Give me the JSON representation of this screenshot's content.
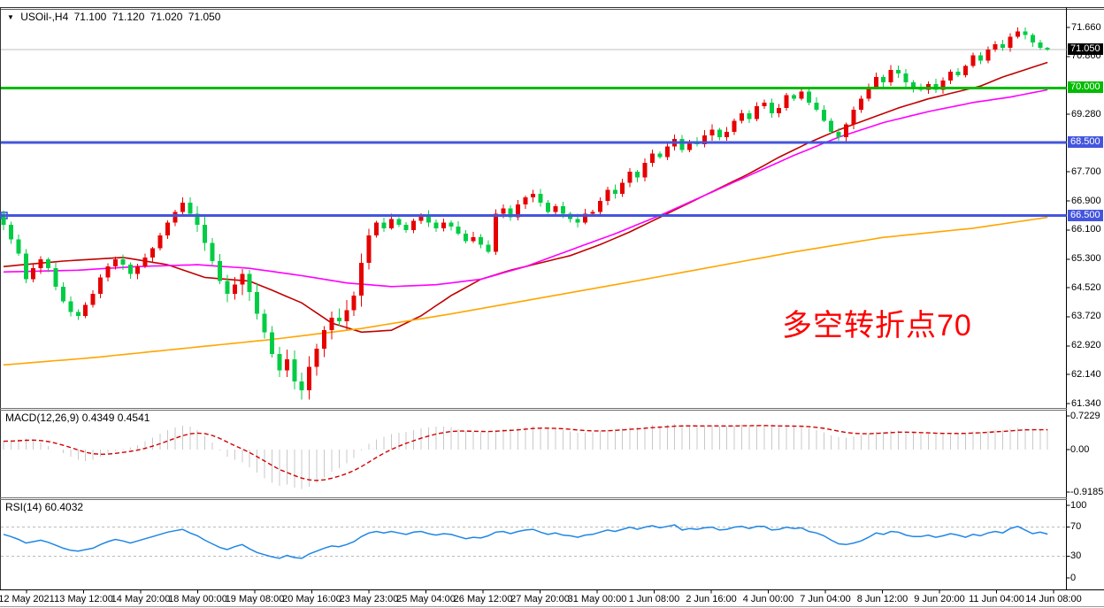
{
  "chart": {
    "symbol_title": "USOil-,H4",
    "ohlc": {
      "open": "71.100",
      "high": "71.120",
      "low": "71.020",
      "close": "71.050"
    },
    "annotation": {
      "text": "多空转折点70",
      "color": "#FF0000"
    }
  },
  "chart_data": {
    "type": "candlestick",
    "title": "USOil- H4",
    "bull_color": "#E60000",
    "bear_color": "#00CC44",
    "current_price": 71.05,
    "current_price_line_color": "#BFBFBF",
    "price_axis_range": [
      61.34,
      71.66
    ],
    "price_axis_ticks": [
      "71.660",
      "70.860",
      "69.280",
      "67.700",
      "66.900",
      "66.100",
      "65.300",
      "64.520",
      "63.720",
      "62.920",
      "62.140",
      "61.340"
    ],
    "price_line_tags": [
      {
        "value": "71.050",
        "price": 71.05,
        "bg": "#000000"
      },
      {
        "value": "70.000",
        "price": 70.0,
        "bg": "#00BB00"
      },
      {
        "value": "68.500",
        "price": 68.5,
        "bg": "#4455DD"
      },
      {
        "value": "66.500",
        "price": 66.5,
        "bg": "#4455DD"
      }
    ],
    "hlines": [
      {
        "price": 70.0,
        "color": "#00BB00",
        "width": 3
      },
      {
        "price": 68.5,
        "color": "#4455DD",
        "width": 3
      },
      {
        "price": 66.5,
        "color": "#4455DD",
        "width": 3,
        "handle": true
      }
    ],
    "x_labels": [
      "12 May 2021",
      "13 May 12:00",
      "14 May 20:00",
      "18 May 00:00",
      "19 May 08:00",
      "20 May 16:00",
      "23 May 23:00",
      "25 May 04:00",
      "26 May 12:00",
      "27 May 20:00",
      "31 May 00:00",
      "1 Jun 08:00",
      "2 Jun 16:00",
      "4 Jun 00:00",
      "7 Jun 04:00",
      "8 Jun 12:00",
      "9 Jun 20:00",
      "11 Jun 04:00",
      "14 Jun 08:00"
    ],
    "open_first": 66.55,
    "closes": [
      66.25,
      65.85,
      65.45,
      64.75,
      65.05,
      65.3,
      65.05,
      64.55,
      64.15,
      63.85,
      63.75,
      64.05,
      64.35,
      64.8,
      65.1,
      65.3,
      65.15,
      64.9,
      65.1,
      65.35,
      65.6,
      65.95,
      66.3,
      66.6,
      66.85,
      66.55,
      66.25,
      65.75,
      65.25,
      64.7,
      64.35,
      64.6,
      64.9,
      64.4,
      63.8,
      63.3,
      62.7,
      62.25,
      62.55,
      61.95,
      61.7,
      62.35,
      62.85,
      63.35,
      63.7,
      63.6,
      63.9,
      64.3,
      65.2,
      65.95,
      66.3,
      66.15,
      66.4,
      66.25,
      66.1,
      66.35,
      66.5,
      66.3,
      66.15,
      66.3,
      66.2,
      66.0,
      65.8,
      65.9,
      65.7,
      65.5,
      66.55,
      66.7,
      66.45,
      66.8,
      67.0,
      67.1,
      66.85,
      66.6,
      66.75,
      66.55,
      66.4,
      66.3,
      66.55,
      66.6,
      66.9,
      67.2,
      67.1,
      67.4,
      67.7,
      67.55,
      67.95,
      68.2,
      68.1,
      68.4,
      68.6,
      68.3,
      68.5,
      68.45,
      68.7,
      68.85,
      68.65,
      68.8,
      69.1,
      69.3,
      69.15,
      69.5,
      69.6,
      69.3,
      69.45,
      69.8,
      69.7,
      69.9,
      69.6,
      69.4,
      69.1,
      68.8,
      68.65,
      69.0,
      69.4,
      69.7,
      70.0,
      70.3,
      70.15,
      70.5,
      70.4,
      70.15,
      70.0,
      69.95,
      70.1,
      69.95,
      70.2,
      70.45,
      70.35,
      70.6,
      70.9,
      70.75,
      71.05,
      71.2,
      71.1,
      71.4,
      71.55,
      71.45,
      71.25,
      71.1,
      71.05
    ],
    "overrides": {
      "24": {
        "h": 67.0
      },
      "41": {
        "l": 61.45
      },
      "112": {
        "l": 68.55
      },
      "136": {
        "h": 71.66
      },
      "140": {
        "o": 71.1,
        "h": 71.12,
        "l": 71.02,
        "c": 71.05
      }
    },
    "ma_lines": [
      {
        "name": "ma-fast-red",
        "color": "#C00000",
        "anchors": [
          [
            0,
            65.1
          ],
          [
            8,
            65.25
          ],
          [
            16,
            65.35
          ],
          [
            22,
            65.15
          ],
          [
            27,
            64.8
          ],
          [
            33,
            64.7
          ],
          [
            36,
            64.45
          ],
          [
            40,
            64.1
          ],
          [
            44,
            63.55
          ],
          [
            48,
            63.3
          ],
          [
            52,
            63.35
          ],
          [
            56,
            63.75
          ],
          [
            60,
            64.3
          ],
          [
            64,
            64.75
          ],
          [
            68,
            65.0
          ],
          [
            72,
            65.2
          ],
          [
            76,
            65.4
          ],
          [
            80,
            65.7
          ],
          [
            84,
            66.05
          ],
          [
            88,
            66.45
          ],
          [
            92,
            66.85
          ],
          [
            96,
            67.25
          ],
          [
            100,
            67.65
          ],
          [
            104,
            68.1
          ],
          [
            108,
            68.5
          ],
          [
            112,
            68.85
          ],
          [
            116,
            69.15
          ],
          [
            120,
            69.45
          ],
          [
            124,
            69.7
          ],
          [
            128,
            69.9
          ],
          [
            131,
            70.05
          ],
          [
            134,
            70.3
          ],
          [
            137,
            70.5
          ],
          [
            140,
            70.7
          ]
        ]
      },
      {
        "name": "ma-mid-magenta",
        "color": "#FF00FF",
        "anchors": [
          [
            0,
            64.95
          ],
          [
            10,
            65.0
          ],
          [
            18,
            65.1
          ],
          [
            26,
            65.15
          ],
          [
            33,
            65.05
          ],
          [
            40,
            64.85
          ],
          [
            46,
            64.65
          ],
          [
            52,
            64.55
          ],
          [
            58,
            64.6
          ],
          [
            64,
            64.75
          ],
          [
            70,
            65.1
          ],
          [
            76,
            65.55
          ],
          [
            82,
            66.0
          ],
          [
            88,
            66.5
          ],
          [
            94,
            67.05
          ],
          [
            100,
            67.6
          ],
          [
            106,
            68.15
          ],
          [
            112,
            68.65
          ],
          [
            118,
            69.05
          ],
          [
            124,
            69.35
          ],
          [
            130,
            69.6
          ],
          [
            135,
            69.75
          ],
          [
            140,
            69.95
          ]
        ]
      },
      {
        "name": "ma-slow-orange",
        "color": "#FFA500",
        "anchors": [
          [
            0,
            62.4
          ],
          [
            12,
            62.6
          ],
          [
            24,
            62.85
          ],
          [
            36,
            63.1
          ],
          [
            48,
            63.4
          ],
          [
            60,
            63.8
          ],
          [
            71,
            64.2
          ],
          [
            82,
            64.6
          ],
          [
            94,
            65.05
          ],
          [
            106,
            65.5
          ],
          [
            118,
            65.9
          ],
          [
            130,
            66.15
          ],
          [
            140,
            66.45
          ]
        ]
      }
    ],
    "macd": {
      "label": "MACD(12,26,9) 0.4349 0.4541",
      "scale": [
        "0.7229",
        "0.00",
        "-0.9185"
      ],
      "scale_values": [
        0.7229,
        0.0,
        -0.9185
      ],
      "hist_color": "#C8C8C8",
      "signal_color": "#D00000",
      "signal_period": 9,
      "values": [
        0.18,
        0.2,
        0.22,
        0.24,
        0.22,
        0.15,
        0.08,
        0.0,
        -0.08,
        -0.15,
        -0.22,
        -0.25,
        -0.22,
        -0.15,
        -0.08,
        -0.02,
        0.02,
        0.05,
        0.1,
        0.18,
        0.26,
        0.34,
        0.42,
        0.48,
        0.52,
        0.5,
        0.42,
        0.3,
        0.15,
        -0.02,
        -0.15,
        -0.22,
        -0.28,
        -0.38,
        -0.5,
        -0.62,
        -0.72,
        -0.78,
        -0.75,
        -0.82,
        -0.85,
        -0.8,
        -0.72,
        -0.6,
        -0.48,
        -0.4,
        -0.3,
        -0.18,
        -0.02,
        0.12,
        0.22,
        0.28,
        0.33,
        0.36,
        0.38,
        0.42,
        0.46,
        0.48,
        0.5,
        0.5,
        0.48,
        0.44,
        0.4,
        0.38,
        0.37,
        0.38,
        0.42,
        0.45,
        0.45,
        0.47,
        0.5,
        0.51,
        0.49,
        0.46,
        0.44,
        0.42,
        0.39,
        0.36,
        0.36,
        0.37,
        0.4,
        0.43,
        0.44,
        0.46,
        0.49,
        0.49,
        0.51,
        0.53,
        0.52,
        0.53,
        0.55,
        0.53,
        0.52,
        0.5,
        0.51,
        0.52,
        0.5,
        0.5,
        0.52,
        0.53,
        0.51,
        0.53,
        0.53,
        0.5,
        0.49,
        0.51,
        0.49,
        0.49,
        0.46,
        0.42,
        0.37,
        0.31,
        0.27,
        0.26,
        0.28,
        0.31,
        0.34,
        0.38,
        0.38,
        0.41,
        0.41,
        0.38,
        0.36,
        0.34,
        0.34,
        0.32,
        0.33,
        0.35,
        0.34,
        0.36,
        0.39,
        0.38,
        0.41,
        0.43,
        0.42,
        0.45,
        0.47,
        0.46,
        0.44,
        0.43,
        0.4349
      ]
    },
    "rsi": {
      "label": "RSI(14) 60.4032",
      "scale": [
        "100",
        "70",
        "30",
        "0"
      ],
      "scale_values": [
        100,
        70,
        30,
        0
      ],
      "levels": [
        70,
        30
      ],
      "color": "#1E86E6",
      "values": [
        60,
        57,
        53,
        48,
        50,
        52,
        49,
        45,
        41,
        38,
        37,
        39,
        41,
        46,
        50,
        53,
        51,
        48,
        51,
        54,
        57,
        60,
        63,
        65,
        67,
        62,
        58,
        52,
        47,
        42,
        39,
        43,
        46,
        40,
        35,
        32,
        29,
        27,
        31,
        28,
        27,
        33,
        37,
        41,
        44,
        43,
        46,
        50,
        57,
        62,
        64,
        62,
        64,
        62,
        60,
        63,
        64,
        61,
        59,
        61,
        60,
        57,
        54,
        56,
        55,
        58,
        63,
        64,
        61,
        64,
        66,
        67,
        63,
        60,
        62,
        59,
        58,
        56,
        59,
        60,
        63,
        66,
        64,
        67,
        70,
        67,
        70,
        72,
        69,
        71,
        73,
        66,
        68,
        67,
        69,
        70,
        66,
        67,
        70,
        71,
        68,
        71,
        71,
        66,
        67,
        70,
        68,
        69,
        64,
        62,
        58,
        52,
        47,
        46,
        48,
        51,
        56,
        62,
        60,
        64,
        63,
        59,
        57,
        57,
        59,
        56,
        58,
        61,
        59,
        56,
        60,
        58,
        62,
        64,
        62,
        68,
        71,
        66,
        61,
        63,
        60.4
      ]
    }
  }
}
